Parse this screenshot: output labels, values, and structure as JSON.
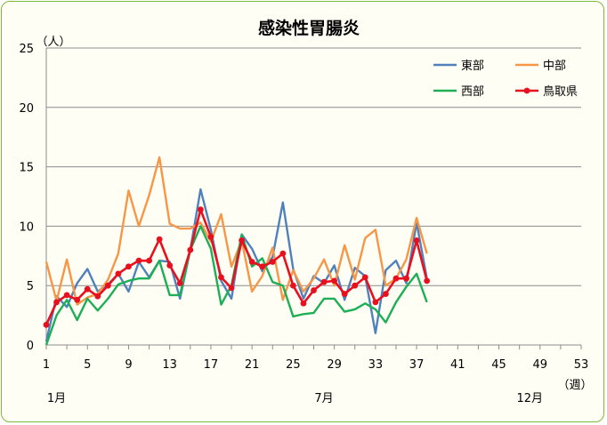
{
  "chart_data": {
    "type": "line",
    "title": "感染性胃腸炎",
    "ylabel": "（人）",
    "xlabel": "（週）",
    "ylim": [
      0,
      25
    ],
    "yticks": [
      0,
      5,
      10,
      15,
      20,
      25
    ],
    "xlim": [
      1,
      53
    ],
    "xticks": [
      1,
      5,
      9,
      13,
      17,
      21,
      25,
      29,
      33,
      37,
      41,
      45,
      49,
      53
    ],
    "month_labels": [
      {
        "text": "1月",
        "week": 2
      },
      {
        "text": "7月",
        "week": 28
      },
      {
        "text": "12月",
        "week": 48
      }
    ],
    "grid": true,
    "legend_position": "top-right",
    "x": [
      1,
      2,
      3,
      4,
      5,
      6,
      7,
      8,
      9,
      10,
      11,
      12,
      13,
      14,
      15,
      16,
      17,
      18,
      19,
      20,
      21,
      22,
      23,
      24,
      25,
      26,
      27,
      28,
      29,
      30,
      31,
      32,
      33,
      34,
      35,
      36,
      37,
      38
    ],
    "series": [
      {
        "name": "東部",
        "color": "#4f81bd",
        "marker": false,
        "values": [
          0.3,
          4.1,
          3.2,
          5.2,
          6.4,
          4.5,
          5.1,
          6.0,
          4.5,
          7.0,
          5.7,
          7.1,
          7.0,
          3.9,
          8.0,
          13.1,
          9.7,
          5.4,
          3.9,
          9.3,
          8.1,
          6.2,
          7.4,
          12.0,
          6.4,
          3.9,
          5.8,
          5.2,
          6.7,
          3.8,
          6.5,
          5.8,
          1.0,
          6.3,
          7.1,
          5.2,
          10.3,
          5.6
        ]
      },
      {
        "name": "中部",
        "color": "#f79646",
        "marker": false,
        "values": [
          7.0,
          3.7,
          7.2,
          3.4,
          4.0,
          4.3,
          5.5,
          7.7,
          13.0,
          10.0,
          12.6,
          15.8,
          10.2,
          9.8,
          9.8,
          10.3,
          8.7,
          11.0,
          6.6,
          8.8,
          4.5,
          5.8,
          8.2,
          3.8,
          6.3,
          4.5,
          5.6,
          7.2,
          5.0,
          8.4,
          5.5,
          9.0,
          9.7,
          5.0,
          5.6,
          7.2,
          10.7,
          7.7
        ]
      },
      {
        "name": "西部",
        "color": "#1daf55",
        "marker": false,
        "values": [
          0.0,
          2.5,
          3.8,
          2.1,
          3.9,
          2.9,
          3.9,
          5.1,
          5.4,
          5.6,
          5.6,
          7.1,
          4.2,
          4.2,
          8.0,
          10.0,
          8.1,
          3.4,
          5.0,
          9.3,
          6.6,
          7.3,
          5.3,
          5.0,
          2.4,
          2.6,
          2.7,
          3.9,
          3.9,
          2.8,
          3.0,
          3.5,
          3.0,
          1.9,
          3.6,
          4.9,
          6.0,
          3.6
        ]
      },
      {
        "name": "鳥取県",
        "color": "#e8101f",
        "marker": true,
        "values": [
          1.7,
          3.6,
          4.2,
          3.8,
          4.7,
          4.1,
          5.0,
          6.0,
          6.6,
          7.1,
          7.1,
          8.9,
          6.7,
          5.2,
          8.0,
          11.4,
          9.1,
          5.7,
          4.8,
          8.8,
          7.0,
          6.6,
          7.0,
          7.7,
          5.0,
          3.5,
          4.6,
          5.3,
          5.4,
          4.3,
          5.0,
          5.7,
          3.6,
          4.3,
          5.6,
          5.6,
          8.8,
          5.4
        ]
      }
    ]
  }
}
